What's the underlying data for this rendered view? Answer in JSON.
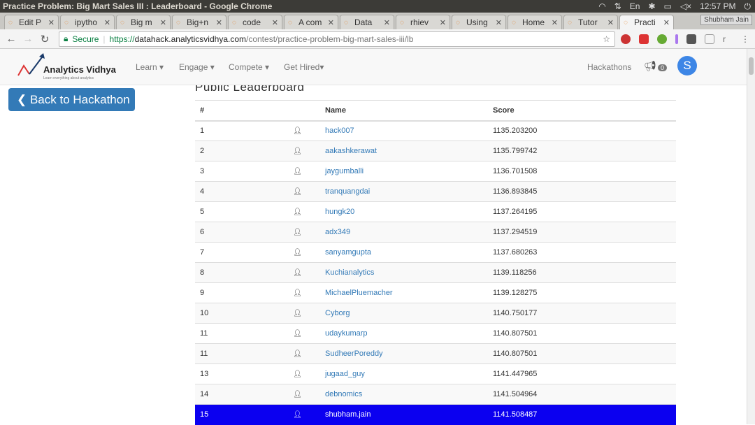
{
  "window": {
    "title": "Practice Problem: Big Mart Sales III : Leaderboard - Google Chrome",
    "time": "12:57 PM",
    "keyboard": "En",
    "user": "Shubham Jain"
  },
  "tabs": [
    {
      "label": "Edit P"
    },
    {
      "label": "ipytho"
    },
    {
      "label": "Big m"
    },
    {
      "label": "Big+n"
    },
    {
      "label": "code"
    },
    {
      "label": "A com"
    },
    {
      "label": "Data"
    },
    {
      "label": "rhiev"
    },
    {
      "label": "Using"
    },
    {
      "label": "Home"
    },
    {
      "label": "Tutor"
    },
    {
      "label": "Practi",
      "active": true
    }
  ],
  "address": {
    "secure": "Secure",
    "scheme": "https://",
    "host": "datahack.analyticsvidhya.com",
    "path": "/contest/practice-problem-big-mart-sales-iii/lb"
  },
  "nav": {
    "logo": "Analytics Vidhya",
    "tagline": "Learn everything about analytics",
    "items": [
      "Learn ▾",
      "Engage ▾",
      "Compete ▾",
      "Get Hired▾"
    ],
    "hackathons": "Hackathons",
    "notifications": "0",
    "avatar": "S"
  },
  "back_button": "❮ Back to Hackathon",
  "leaderboard": {
    "title": "Public Leaderboard",
    "headers": [
      "#",
      "",
      "Name",
      "Score"
    ],
    "rows": [
      {
        "rank": "1",
        "name": "hack007",
        "score": "1135.203200"
      },
      {
        "rank": "2",
        "name": "aakashkerawat",
        "score": "1135.799742"
      },
      {
        "rank": "3",
        "name": "jaygumballi",
        "score": "1136.701508"
      },
      {
        "rank": "4",
        "name": "tranquangdai",
        "score": "1136.893845"
      },
      {
        "rank": "5",
        "name": "hungk20",
        "score": "1137.264195"
      },
      {
        "rank": "6",
        "name": "adx349",
        "score": "1137.294519"
      },
      {
        "rank": "7",
        "name": "sanyamgupta",
        "score": "1137.680263"
      },
      {
        "rank": "8",
        "name": "Kuchianalytics",
        "score": "1139.118256"
      },
      {
        "rank": "9",
        "name": "MichaelPluemacher",
        "score": "1139.128275"
      },
      {
        "rank": "10",
        "name": "Cyborg",
        "score": "1140.750177"
      },
      {
        "rank": "11",
        "name": "udaykumarp",
        "score": "1140.807501"
      },
      {
        "rank": "11",
        "name": "SudheerPoreddy",
        "score": "1140.807501"
      },
      {
        "rank": "13",
        "name": "jugaad_guy",
        "score": "1141.447965"
      },
      {
        "rank": "14",
        "name": "debnomics",
        "score": "1141.504964"
      },
      {
        "rank": "15",
        "name": "shubham.jain",
        "score": "1141.508487",
        "highlight": true
      }
    ]
  },
  "colors": {
    "highlight": "#0b00f0",
    "link": "#337ab7",
    "button": "#337ab7"
  }
}
